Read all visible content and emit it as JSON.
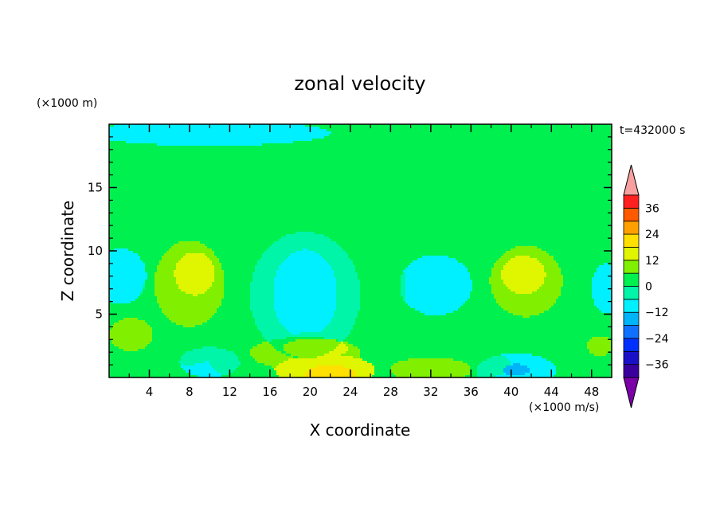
{
  "chart_data": {
    "type": "heatmap",
    "title": "zonal velocity",
    "xlabel": "X coordinate",
    "ylabel": "Z coordinate",
    "x_unit_label": "(×1000 m/s)",
    "y_unit_label": "(×1000 m)",
    "time_label": "t=432000 s",
    "xlim": [
      0,
      50
    ],
    "ylim": [
      0,
      20
    ],
    "xticks": [
      "4",
      "8",
      "12",
      "16",
      "20",
      "24",
      "28",
      "32",
      "36",
      "40",
      "44",
      "48"
    ],
    "yticks": [
      "5",
      "10",
      "15"
    ],
    "colorbar_ticks": [
      "36",
      "24",
      "12",
      "0",
      "−12",
      "−24",
      "−36"
    ],
    "colorbar_values": [
      36,
      24,
      12,
      0,
      -12,
      -24,
      -36
    ],
    "levels": [
      -42,
      -36,
      -30,
      -24,
      -18,
      -12,
      -6,
      0,
      6,
      12,
      18,
      24,
      30,
      36,
      42
    ],
    "colors": [
      "#7b00a8",
      "#3a009e",
      "#1a10c8",
      "#0030ff",
      "#1070ff",
      "#00b4f8",
      "#00f0ff",
      "#00f5a8",
      "#00f050",
      "#80f000",
      "#e0f500",
      "#ffe000",
      "#ffa000",
      "#ff5a00",
      "#ff2020",
      "#f8a0a0"
    ],
    "background": "#00f5a8",
    "features": [
      {
        "x": 36,
        "y": 16.5,
        "rx": 14,
        "ry": 4.5,
        "value": 3
      },
      {
        "x": 40,
        "y": 12.2,
        "rx": 10,
        "ry": 2.0,
        "value": 3
      },
      {
        "x": 23,
        "y": 14.6,
        "rx": 4.5,
        "ry": 2.2,
        "value": 3
      },
      {
        "x": 11,
        "y": 10.8,
        "rx": 6.5,
        "ry": 1.8,
        "value": 3
      },
      {
        "x": 8,
        "y": 5.5,
        "rx": 5,
        "ry": 4.5,
        "value": 3
      },
      {
        "x": 27.5,
        "y": 7.2,
        "rx": 2,
        "ry": 3,
        "value": 3
      },
      {
        "x": 41.5,
        "y": 7.5,
        "rx": 5,
        "ry": 3.5,
        "value": 3
      },
      {
        "x": 2.8,
        "y": 3.5,
        "rx": 3,
        "ry": 1.8,
        "value": 3
      },
      {
        "x": 20,
        "y": 1.3,
        "rx": 10,
        "ry": 2.2,
        "value": 3
      },
      {
        "x": 32,
        "y": 1.0,
        "rx": 8,
        "ry": 1.6,
        "value": 3
      },
      {
        "x": 48.5,
        "y": 1.5,
        "rx": 2.5,
        "ry": 2.5,
        "value": 3
      },
      {
        "x": 8,
        "y": 7.4,
        "rx": 3.5,
        "ry": 3.4,
        "value": 10
      },
      {
        "x": 8.5,
        "y": 8.2,
        "rx": 2,
        "ry": 1.7,
        "value": 14
      },
      {
        "x": 41.5,
        "y": 7.6,
        "rx": 3.6,
        "ry": 2.8,
        "value": 10
      },
      {
        "x": 41.2,
        "y": 8.1,
        "rx": 2.2,
        "ry": 1.5,
        "value": 14
      },
      {
        "x": 2.2,
        "y": 3.4,
        "rx": 2.2,
        "ry": 1.3,
        "value": 9
      },
      {
        "x": 19.5,
        "y": 1.9,
        "rx": 5.5,
        "ry": 1.3,
        "value": 9
      },
      {
        "x": 20.5,
        "y": 2.3,
        "rx": 3.2,
        "ry": 0.8,
        "value": 14
      },
      {
        "x": 21.5,
        "y": 0.6,
        "rx": 5,
        "ry": 1.2,
        "value": 12
      },
      {
        "x": 22,
        "y": 0.25,
        "rx": 2.5,
        "ry": 0.7,
        "value": 19
      },
      {
        "x": 32,
        "y": 0.6,
        "rx": 4,
        "ry": 1.0,
        "value": 10
      },
      {
        "x": 48.8,
        "y": 2.5,
        "rx": 1.2,
        "ry": 0.8,
        "value": 9
      },
      {
        "x": 19.5,
        "y": 6.5,
        "rx": 5.5,
        "ry": 5,
        "value": -5
      },
      {
        "x": 19.5,
        "y": 6.6,
        "rx": 3.2,
        "ry": 3.5,
        "value": -9
      },
      {
        "x": 32.5,
        "y": 7.3,
        "rx": 3.6,
        "ry": 2.4,
        "value": -8
      },
      {
        "x": 1.2,
        "y": 8,
        "rx": 2.5,
        "ry": 2.2,
        "value": -8
      },
      {
        "x": 49.5,
        "y": 7,
        "rx": 1.5,
        "ry": 2.0,
        "value": -8
      },
      {
        "x": 10,
        "y": 1.2,
        "rx": 3,
        "ry": 1.2,
        "value": -9
      },
      {
        "x": 40.5,
        "y": 0.5,
        "rx": 4,
        "ry": 1.4,
        "value": -9
      },
      {
        "x": 40.5,
        "y": 0.6,
        "rx": 1.3,
        "ry": 0.45,
        "value": -17
      },
      {
        "x": 10,
        "y": 19.3,
        "rx": 12,
        "ry": 1.0,
        "value": -7
      }
    ]
  }
}
